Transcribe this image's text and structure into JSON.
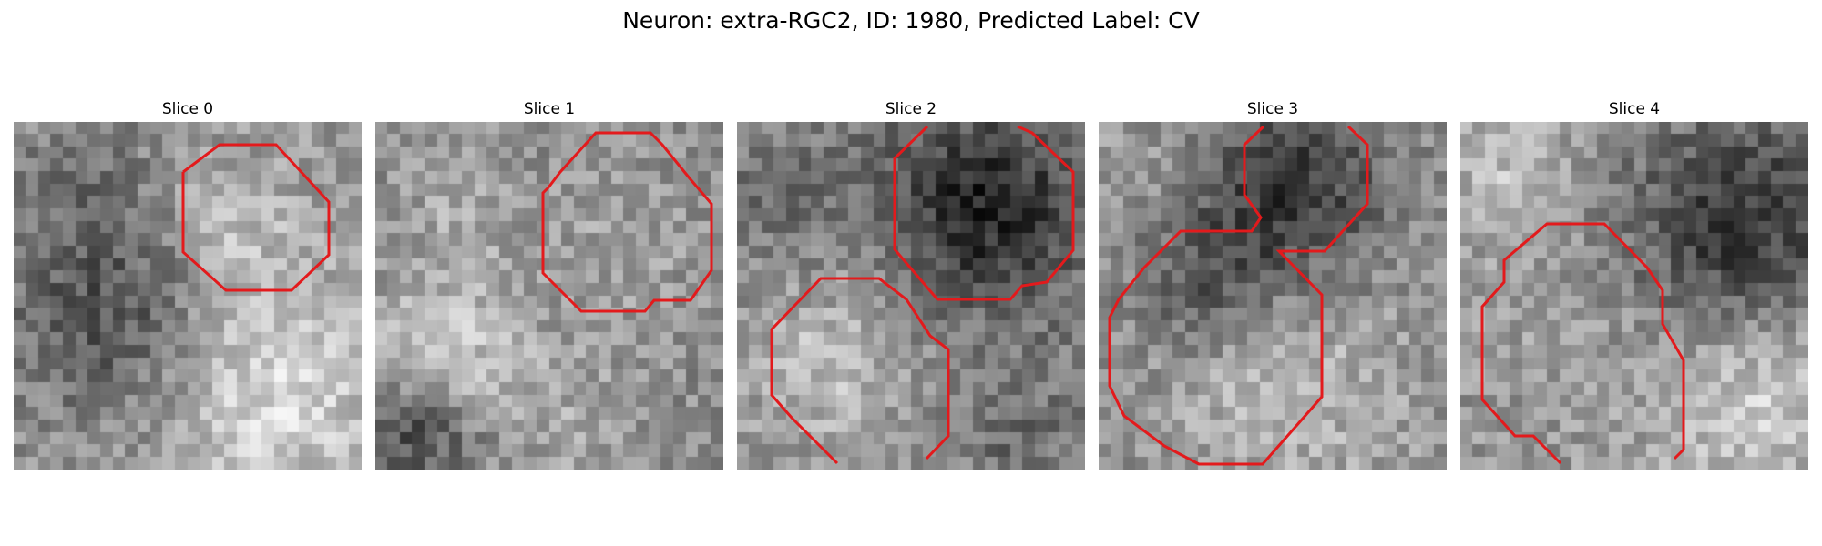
{
  "figure": {
    "title": "Neuron: extra-RGC2, ID: 1980, Predicted Label: CV"
  },
  "slices": [
    {
      "title": "Slice 0"
    },
    {
      "title": "Slice 1"
    },
    {
      "title": "Slice 2"
    },
    {
      "title": "Slice 3"
    },
    {
      "title": "Slice 4"
    }
  ],
  "colors": {
    "contour": "#e31a1c",
    "background": "#ffffff"
  }
}
